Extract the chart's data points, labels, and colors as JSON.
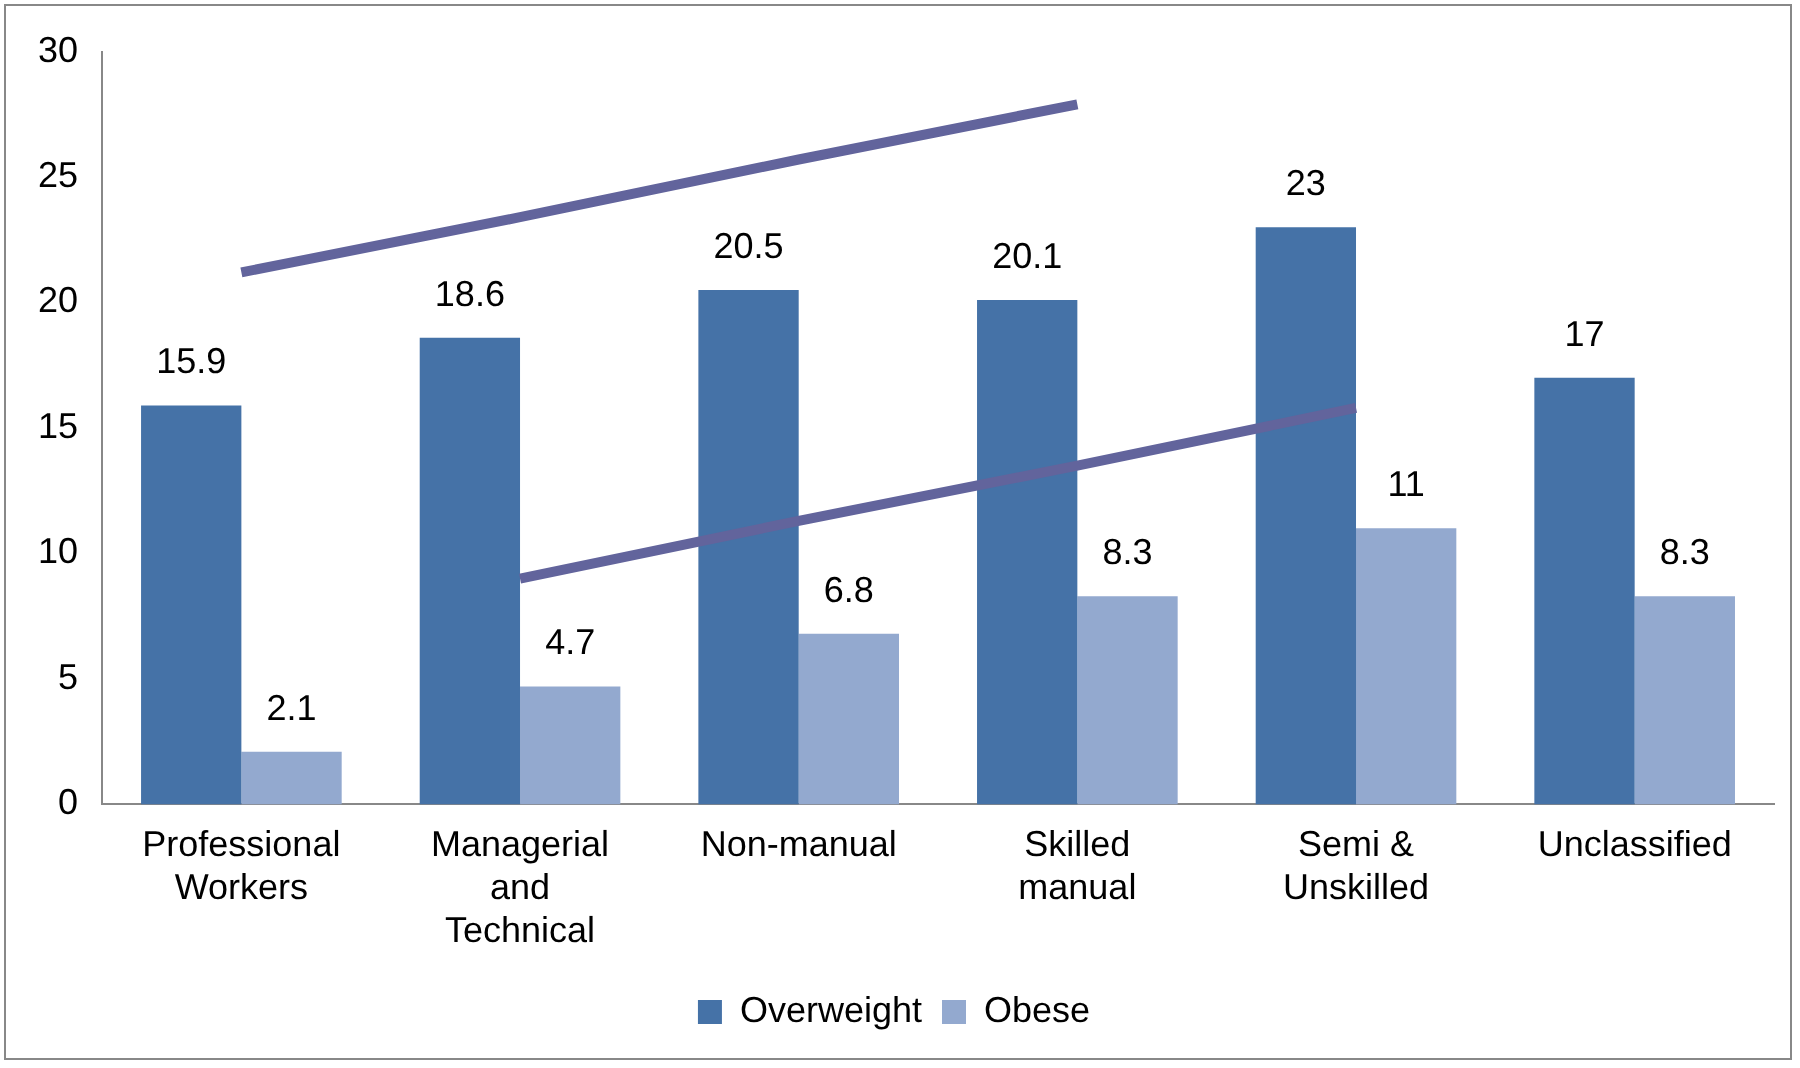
{
  "chart_data": {
    "type": "bar",
    "categories": [
      "Professional Workers",
      "Managerial and Technical",
      "Non-manual",
      "Skilled manual",
      "Semi & Unskilled",
      "Unclassified"
    ],
    "series": [
      {
        "name": "Overweight",
        "color": "#4572a7",
        "values": [
          15.9,
          18.6,
          20.5,
          20.1,
          23,
          17
        ],
        "value_labels": [
          "15.9",
          "18.6",
          "20.5",
          "20.1",
          "23",
          "17"
        ]
      },
      {
        "name": "Obese",
        "color": "#93a9cf",
        "values": [
          2.1,
          4.7,
          6.8,
          8.3,
          11,
          8.3
        ],
        "value_labels": [
          "2.1",
          "4.7",
          "6.8",
          "8.3",
          "11",
          "8.3"
        ]
      },
      {
        "type": "line",
        "color": "#62649c",
        "values": [
          21.2,
          23.4,
          25.7,
          27.9,
          null,
          null
        ]
      },
      {
        "type": "line",
        "color": "#62649c",
        "values": [
          null,
          9.0,
          11.3,
          13.5,
          15.8,
          null
        ]
      }
    ],
    "ylim": [
      0,
      30
    ],
    "yticks": [
      0,
      5,
      10,
      15,
      20,
      25,
      30
    ],
    "grid": false,
    "legend": "bottom"
  }
}
